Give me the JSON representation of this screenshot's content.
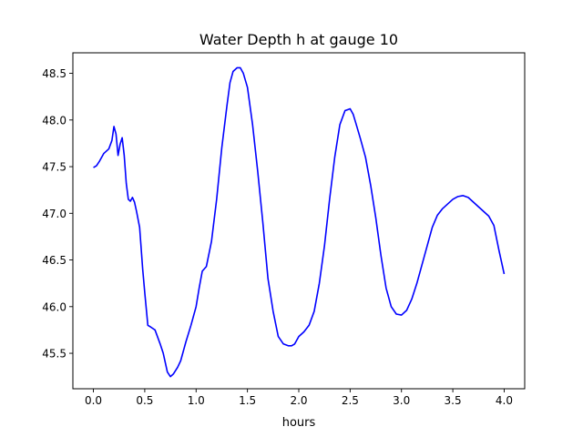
{
  "chart_data": {
    "type": "line",
    "title": "Water Depth h at gauge 10",
    "xlabel": "hours",
    "ylabel": "",
    "xlim": [
      -0.2,
      4.2
    ],
    "ylim": [
      45.12,
      48.72
    ],
    "xticks": [
      0.0,
      0.5,
      1.0,
      1.5,
      2.0,
      2.5,
      3.0,
      3.5,
      4.0
    ],
    "xtick_labels": [
      "0.0",
      "0.5",
      "1.0",
      "1.5",
      "2.0",
      "2.5",
      "3.0",
      "3.5",
      "4.0"
    ],
    "yticks": [
      45.5,
      46.0,
      46.5,
      47.0,
      47.5,
      48.0,
      48.5
    ],
    "ytick_labels": [
      "45.5",
      "46.0",
      "46.5",
      "47.0",
      "47.5",
      "48.0",
      "48.5"
    ],
    "grid": false,
    "series": [
      {
        "color": "#0000ff",
        "x": [
          0.0,
          0.03,
          0.06,
          0.1,
          0.15,
          0.18,
          0.2,
          0.22,
          0.24,
          0.26,
          0.28,
          0.3,
          0.32,
          0.34,
          0.36,
          0.38,
          0.4,
          0.42,
          0.45,
          0.48,
          0.5,
          0.53,
          0.56,
          0.6,
          0.65,
          0.68,
          0.72,
          0.75,
          0.78,
          0.82,
          0.85,
          0.9,
          0.95,
          1.0,
          1.03,
          1.06,
          1.1,
          1.15,
          1.2,
          1.25,
          1.3,
          1.33,
          1.36,
          1.4,
          1.43,
          1.46,
          1.5,
          1.55,
          1.6,
          1.65,
          1.7,
          1.75,
          1.8,
          1.85,
          1.9,
          1.93,
          1.96,
          2.0,
          2.05,
          2.1,
          2.15,
          2.2,
          2.25,
          2.3,
          2.35,
          2.4,
          2.45,
          2.5,
          2.53,
          2.56,
          2.6,
          2.65,
          2.7,
          2.75,
          2.8,
          2.85,
          2.9,
          2.95,
          3.0,
          3.05,
          3.1,
          3.15,
          3.2,
          3.25,
          3.3,
          3.35,
          3.4,
          3.45,
          3.5,
          3.55,
          3.6,
          3.65,
          3.7,
          3.75,
          3.8,
          3.85,
          3.9,
          3.95,
          4.0
        ],
        "y": [
          47.49,
          47.51,
          47.56,
          47.64,
          47.69,
          47.78,
          47.93,
          47.85,
          47.62,
          47.74,
          47.81,
          47.62,
          47.32,
          47.15,
          47.13,
          47.17,
          47.12,
          47.02,
          46.85,
          46.4,
          46.15,
          45.8,
          45.78,
          45.75,
          45.6,
          45.5,
          45.3,
          45.25,
          45.28,
          45.35,
          45.42,
          45.62,
          45.8,
          46.0,
          46.2,
          46.38,
          46.43,
          46.7,
          47.15,
          47.7,
          48.15,
          48.4,
          48.52,
          48.56,
          48.56,
          48.5,
          48.35,
          47.95,
          47.45,
          46.9,
          46.3,
          45.95,
          45.68,
          45.6,
          45.58,
          45.58,
          45.6,
          45.68,
          45.73,
          45.8,
          45.95,
          46.25,
          46.65,
          47.15,
          47.6,
          47.95,
          48.1,
          48.12,
          48.06,
          47.95,
          47.8,
          47.6,
          47.3,
          46.95,
          46.55,
          46.2,
          46.0,
          45.92,
          45.91,
          45.96,
          46.08,
          46.25,
          46.45,
          46.65,
          46.85,
          46.98,
          47.05,
          47.1,
          47.15,
          47.18,
          47.19,
          47.17,
          47.12,
          47.07,
          47.02,
          46.97,
          46.87,
          46.6,
          46.35
        ]
      }
    ]
  }
}
